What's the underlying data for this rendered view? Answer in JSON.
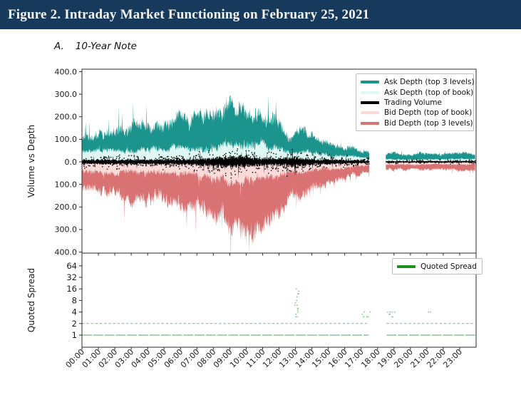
{
  "header": {
    "title": "Figure 2. Intraday Market Functioning on February 25, 2021",
    "bg_color": "#17395C"
  },
  "panel": {
    "index_label": "A.",
    "title": "10-Year Note"
  },
  "chart_data": {
    "type": "area",
    "x": {
      "range_hours": [
        0,
        24
      ],
      "tick_hours": [
        0,
        1,
        2,
        3,
        4,
        5,
        6,
        7,
        8,
        9,
        10,
        11,
        12,
        13,
        14,
        15,
        16,
        17,
        18,
        19,
        20,
        21,
        22,
        23
      ],
      "tick_labels": [
        "00:00",
        "01:00",
        "02:00",
        "03:00",
        "04:00",
        "05:00",
        "06:00",
        "07:00",
        "08:00",
        "09:00",
        "10:00",
        "11:00",
        "12:00",
        "13:00",
        "14:00",
        "15:00",
        "16:00",
        "17:00",
        "18:00",
        "19:00",
        "20:00",
        "21:00",
        "22:00",
        "23:00"
      ]
    },
    "top_panel": {
      "ylabel": "Volume vs Depth",
      "ylim": [
        -411,
        411
      ],
      "ytick_values": [
        400,
        300,
        200,
        100,
        0,
        -100,
        -200,
        -300,
        -400
      ],
      "ytick_labels": [
        "400.0",
        "300.0",
        "200.0",
        "100.0",
        "0.0",
        "100.0",
        "200.0",
        "300.0",
        "400.0"
      ],
      "legend": [
        {
          "label": "Ask Depth (top 3 levels)",
          "color": "#1A948C"
        },
        {
          "label": "Ask Depth (top of book)",
          "color": "#E0F8F4"
        },
        {
          "label": "Trading Volume",
          "color": "#000000"
        },
        {
          "label": "Bid Depth (top of book)",
          "color": "#FADBD9"
        },
        {
          "label": "Bid Depth (top 3 levels)",
          "color": "#D97373"
        }
      ],
      "gap_hours": [
        17.5,
        18.5
      ],
      "data_end_hour": 23.95,
      "keyframes_format": [
        "hour",
        "ask_depth_top3",
        "ask_depth_top_of_book",
        "trading_volume_amplitude",
        "bid_depth_top_of_book",
        "bid_depth_top3"
      ],
      "keyframes": [
        [
          0.0,
          115,
          45,
          8,
          40,
          120
        ],
        [
          0.5,
          118,
          46,
          8,
          42,
          124
        ],
        [
          1.0,
          126,
          48,
          8,
          45,
          132
        ],
        [
          1.5,
          135,
          50,
          8,
          47,
          140
        ],
        [
          2.0,
          145,
          52,
          8,
          50,
          150
        ],
        [
          3.0,
          150,
          54,
          8,
          50,
          160
        ],
        [
          4.0,
          155,
          55,
          8,
          55,
          165
        ],
        [
          5.0,
          160,
          56,
          9,
          55,
          170
        ],
        [
          5.5,
          172,
          58,
          9,
          58,
          176
        ],
        [
          6.0,
          185,
          58,
          10,
          60,
          185
        ],
        [
          6.5,
          176,
          60,
          10,
          60,
          192
        ],
        [
          7.0,
          190,
          62,
          12,
          64,
          200
        ],
        [
          7.5,
          186,
          64,
          13,
          66,
          210
        ],
        [
          8.0,
          200,
          68,
          15,
          70,
          230
        ],
        [
          8.5,
          235,
          72,
          18,
          75,
          250
        ],
        [
          9.0,
          250,
          78,
          20,
          80,
          262
        ],
        [
          9.4,
          242,
          82,
          20,
          84,
          272
        ],
        [
          9.8,
          226,
          86,
          18,
          88,
          288
        ],
        [
          10.2,
          212,
          88,
          16,
          86,
          330
        ],
        [
          10.5,
          206,
          84,
          15,
          80,
          292
        ],
        [
          11.0,
          196,
          76,
          14,
          72,
          266
        ],
        [
          11.5,
          182,
          68,
          13,
          66,
          246
        ],
        [
          12.0,
          166,
          60,
          12,
          60,
          226
        ],
        [
          12.4,
          128,
          50,
          15,
          50,
          188
        ],
        [
          12.7,
          96,
          40,
          18,
          42,
          128
        ],
        [
          13.0,
          138,
          46,
          17,
          46,
          146
        ],
        [
          13.4,
          150,
          46,
          14,
          46,
          152
        ],
        [
          13.8,
          112,
          40,
          12,
          40,
          124
        ],
        [
          14.2,
          100,
          36,
          10,
          36,
          112
        ],
        [
          14.8,
          88,
          32,
          9,
          32,
          98
        ],
        [
          15.4,
          76,
          28,
          8,
          28,
          86
        ],
        [
          16.0,
          62,
          25,
          7,
          25,
          70
        ],
        [
          16.6,
          56,
          20,
          6,
          20,
          58
        ],
        [
          17.1,
          50,
          17,
          5,
          17,
          50
        ],
        [
          17.5,
          45,
          15,
          5,
          15,
          45
        ],
        [
          18.5,
          34,
          11,
          3,
          11,
          34
        ],
        [
          19.0,
          38,
          12,
          3,
          12,
          38
        ],
        [
          19.5,
          35,
          11,
          3,
          11,
          35
        ],
        [
          20.0,
          34,
          11,
          3,
          11,
          35
        ],
        [
          20.5,
          37,
          12,
          3,
          12,
          36
        ],
        [
          21.0,
          37,
          12,
          3,
          12,
          36
        ],
        [
          21.5,
          34,
          11,
          3,
          11,
          34
        ],
        [
          22.0,
          34,
          11,
          3,
          11,
          35
        ],
        [
          22.5,
          36,
          12,
          3,
          12,
          36
        ],
        [
          23.0,
          36,
          12,
          3,
          12,
          36
        ],
        [
          23.95,
          35,
          11,
          3,
          11,
          35
        ]
      ]
    },
    "bottom_panel": {
      "ylabel": "Quoted Spread",
      "yscale": "log2",
      "ytick_values": [
        64,
        32,
        16,
        8,
        4,
        2,
        1
      ],
      "ytick_labels": [
        "64",
        "32",
        "16",
        "8",
        "4",
        "2",
        "1"
      ],
      "legend": [
        {
          "label": "Quoted Spread",
          "color": "#1E8E1E"
        }
      ],
      "spread_line_values": [
        1,
        2
      ],
      "spread_segments_hours": [
        [
          0,
          17.45
        ],
        [
          18.55,
          23.95
        ]
      ],
      "spread_dot_clusters": [
        {
          "hour": 13.05,
          "values": [
            3,
            3.5,
            4,
            4.5,
            5,
            6,
            7,
            8,
            10,
            12,
            14,
            16
          ]
        },
        {
          "hour": 17.15,
          "values": [
            3,
            3.5,
            4
          ]
        },
        {
          "hour": 17.4,
          "values": [
            3,
            4
          ]
        },
        {
          "hour": 18.7,
          "values": [
            3.5,
            4
          ]
        },
        {
          "hour": 18.95,
          "values": [
            3,
            4
          ]
        },
        {
          "hour": 21.1,
          "values": [
            4
          ]
        }
      ]
    }
  }
}
